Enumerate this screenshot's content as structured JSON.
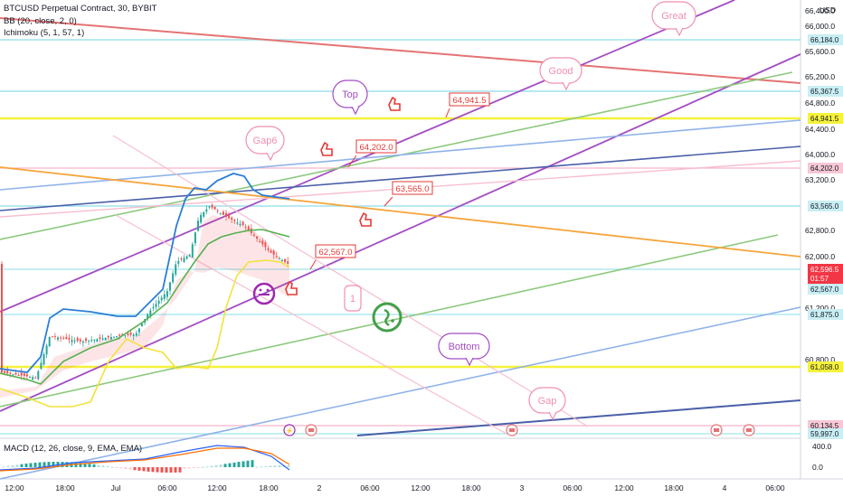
{
  "header": {
    "title": "BTCUSD Perpetual Contract, 30, BYBIT",
    "bb": "BB (20, close, 2, 0)",
    "ichimoku": "Ichimoku (5, 1, 57, 1)",
    "macd": "MACD (12, 26, close, 9, EMA, EMA)"
  },
  "currency": "USD",
  "price_axis": [
    "66,400.0",
    "66,000.0",
    "65,600.0",
    "65,200.0",
    "64,800.0",
    "64,400.0",
    "64,000.0",
    "63,200.0",
    "62,800.0",
    "62,000.0",
    "61,200.0",
    "60,800.0"
  ],
  "price_tags": [
    {
      "label": "66,184.0",
      "style": "cyan"
    },
    {
      "label": "65,367.5",
      "style": "cyan"
    },
    {
      "label": "64,941.5",
      "style": "yellow"
    },
    {
      "label": "64,202.0",
      "style": "pink"
    },
    {
      "label": "63,565.0",
      "style": "cyan"
    },
    {
      "label": "62,596.5",
      "style": "red"
    },
    {
      "label": "01:57",
      "style": "red"
    },
    {
      "label": "62,567.0",
      "style": "cyan"
    },
    {
      "label": "61,875.0",
      "style": "cyan"
    },
    {
      "label": "61,058.0",
      "style": "yellow"
    },
    {
      "label": "60,134.5",
      "style": "pink"
    },
    {
      "label": "59,997.0",
      "style": "cyan"
    }
  ],
  "macd_axis": [
    "400.0",
    "0.0"
  ],
  "time_axis": [
    "12:00",
    "18:00",
    "Jul",
    "06:00",
    "12:00",
    "18:00",
    "2",
    "06:00",
    "12:00",
    "18:00",
    "3",
    "06:00",
    "12:00",
    "18:00",
    "4",
    "06:00"
  ],
  "annotations": {
    "great": "Great",
    "good": "Good",
    "top": "Top",
    "gap6": "Gap6",
    "bottom": "Bottom",
    "gap": "Gap",
    "one": "1",
    "lbl_64941": "64,941.5",
    "lbl_64202": "64,202.0",
    "lbl_63565": "63,565.0",
    "lbl_62567": "62,567.0"
  },
  "colors": {
    "cyan": "#9fe3ec",
    "yellow": "#f5f23a",
    "pink": "#f7b4c9",
    "red": "#f23645",
    "purple": "#a34cc4",
    "green": "#7cc36a",
    "blue": "#6d9fe6",
    "navy": "#3b4fa0",
    "orange": "#f7a53b",
    "up": "#26a69a",
    "down": "#ef5350"
  }
}
